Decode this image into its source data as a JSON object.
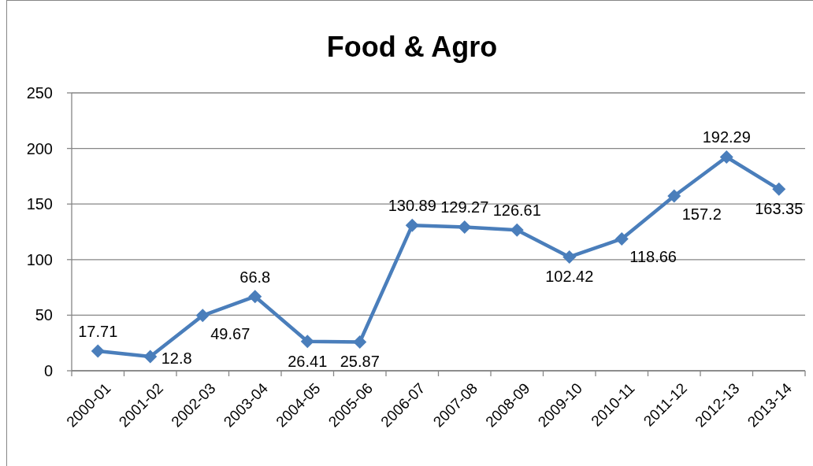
{
  "chart_data": {
    "type": "line",
    "title": "Food & Agro",
    "categories": [
      "2000-01",
      "2001-02",
      "2002-03",
      "2003-04",
      "2004-05",
      "2005-06",
      "2006-07",
      "2007-08",
      "2008-09",
      "2009-10",
      "2010-11",
      "2011-12",
      "2012-13",
      "2013-14"
    ],
    "series": [
      {
        "color": "#4a7ebb",
        "values": [
          17.71,
          12.8,
          49.67,
          66.8,
          26.41,
          25.87,
          130.89,
          129.27,
          126.61,
          102.42,
          118.66,
          157.2,
          192.29,
          163.35
        ]
      }
    ],
    "ylim": [
      0,
      250
    ],
    "yticks": [
      0,
      50,
      100,
      150,
      200,
      250
    ],
    "grid": "y",
    "marker": "diamond",
    "data_labels": true
  }
}
